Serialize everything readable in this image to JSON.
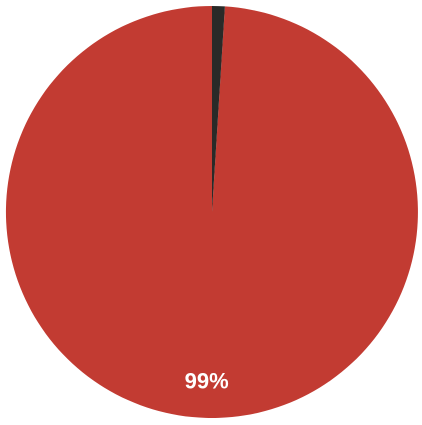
{
  "chart_data": {
    "type": "pie",
    "title": "",
    "start_angle_deg": 0,
    "direction": "counterclockwise",
    "slices": [
      {
        "value": 99,
        "label": "99%",
        "color": "#c23b32"
      },
      {
        "value": 1,
        "label": "",
        "color": "#2a2a28"
      }
    ],
    "legend": "none"
  }
}
